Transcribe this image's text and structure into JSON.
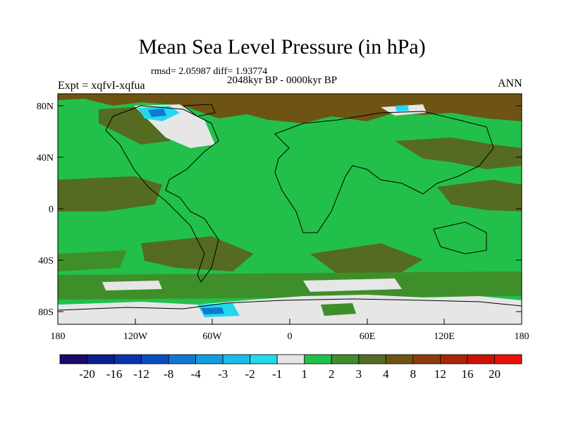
{
  "figure": {
    "title": "Mean Sea Level Pressure (in hPa)",
    "stats": "rmsd= 2.05987 diff= 1.93774",
    "period": "2048kyr BP - 0000kyr BP",
    "experiment": "Expt = xqfvI-xqfua",
    "season": "ANN"
  },
  "axes": {
    "lat_labels": [
      "80N",
      "40N",
      "0",
      "40S",
      "80S"
    ],
    "lon_labels": [
      "180",
      "120W",
      "60W",
      "0",
      "60E",
      "120E",
      "180"
    ]
  },
  "colorbar": {
    "labels": [
      "-20",
      "-16",
      "-12",
      "-8",
      "-4",
      "-3",
      "-2",
      "-1",
      "1",
      "2",
      "3",
      "4",
      "8",
      "12",
      "16",
      "20"
    ],
    "colors": [
      "#1a0a6b",
      "#0a1f8f",
      "#0a33a8",
      "#0b4fbf",
      "#1079cf",
      "#139ddc",
      "#1bbde8",
      "#22d8ec",
      "#e6e6e6",
      "#22c04a",
      "#3e8f2a",
      "#556b22",
      "#6e5414",
      "#8a3c0c",
      "#a82508",
      "#cc1206",
      "#e8120a"
    ]
  },
  "map_colors": {
    "ocean_green": "#22c04a",
    "dark_green": "#3e8f2a",
    "olive": "#556b22",
    "brown": "#6e5414",
    "white": "#e6e6e6",
    "cyan": "#22d8ec",
    "blue": "#1079cf"
  }
}
